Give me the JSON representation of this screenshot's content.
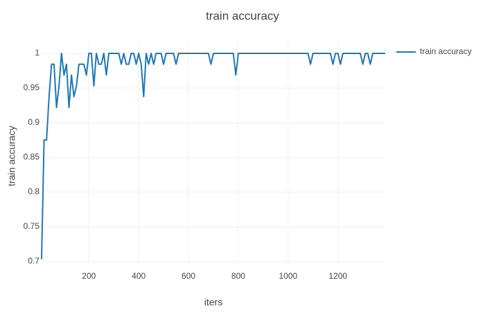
{
  "chart_data": {
    "type": "line",
    "title": "train accuracy",
    "x_label": "iters",
    "y_label": "train accuracy",
    "x": [
      10,
      20,
      30,
      40,
      50,
      60,
      70,
      80,
      90,
      100,
      110,
      120,
      130,
      140,
      150,
      160,
      170,
      180,
      190,
      200,
      210,
      220,
      230,
      240,
      250,
      260,
      270,
      280,
      290,
      300,
      310,
      320,
      330,
      340,
      350,
      360,
      370,
      380,
      390,
      400,
      410,
      420,
      430,
      440,
      450,
      460,
      470,
      480,
      490,
      500,
      510,
      520,
      530,
      540,
      550,
      560,
      570,
      580,
      590,
      600,
      610,
      620,
      630,
      640,
      650,
      660,
      670,
      680,
      690,
      700,
      710,
      720,
      730,
      740,
      750,
      760,
      770,
      780,
      790,
      800,
      810,
      820,
      830,
      840,
      850,
      860,
      870,
      880,
      890,
      900,
      910,
      920,
      930,
      940,
      950,
      960,
      970,
      980,
      990,
      1000,
      1010,
      1020,
      1030,
      1040,
      1050,
      1060,
      1070,
      1080,
      1090,
      1100,
      1110,
      1120,
      1130,
      1140,
      1150,
      1160,
      1170,
      1180,
      1190,
      1200,
      1210,
      1220,
      1230,
      1240,
      1250,
      1260,
      1270,
      1280,
      1290,
      1300,
      1310,
      1320,
      1330,
      1340,
      1350,
      1360,
      1370,
      1380,
      1390
    ],
    "series": [
      {
        "name": "train accuracy",
        "color": "#1f77b4",
        "values": [
          0.703125,
          0.875,
          0.875,
          0.9375,
          0.984375,
          0.984375,
          0.921875,
          0.953125,
          1,
          0.96875,
          0.984375,
          0.921875,
          0.96875,
          0.9375,
          0.953125,
          0.984375,
          0.984375,
          0.984375,
          0.96875,
          1,
          1,
          0.953125,
          1,
          0.984375,
          0.984375,
          1,
          0.96875,
          1,
          1,
          1,
          1,
          1,
          0.984375,
          1,
          0.984375,
          0.984375,
          1,
          1,
          0.984375,
          1,
          0.984375,
          0.9375,
          1,
          0.984375,
          1,
          0.984375,
          1,
          1,
          1,
          0.984375,
          1,
          1,
          1,
          1,
          0.984375,
          1,
          1,
          1,
          1,
          1,
          1,
          1,
          1,
          1,
          1,
          1,
          1,
          1,
          0.984375,
          1,
          1,
          1,
          1,
          1,
          1,
          1,
          1,
          1,
          0.96875,
          1,
          1,
          1,
          1,
          1,
          1,
          1,
          1,
          1,
          1,
          1,
          1,
          1,
          1,
          1,
          1,
          1,
          1,
          1,
          1,
          1,
          1,
          1,
          1,
          1,
          1,
          1,
          1,
          1,
          0.984375,
          1,
          1,
          1,
          1,
          1,
          1,
          1,
          1,
          0.984375,
          1,
          1,
          0.984375,
          1,
          1,
          1,
          1,
          1,
          1,
          1,
          1,
          0.984375,
          1,
          1,
          0.984375,
          1,
          1,
          1,
          1,
          1,
          1
        ]
      }
    ],
    "xlim": [
      10,
      1390
    ],
    "xticks": [
      200,
      400,
      600,
      800,
      1000,
      1200
    ],
    "ylim": [
      0.7,
      1.017
    ],
    "yticks": [
      0.7,
      0.75,
      0.8,
      0.85,
      0.9,
      0.95,
      1
    ],
    "grid": true,
    "legend": "right"
  }
}
